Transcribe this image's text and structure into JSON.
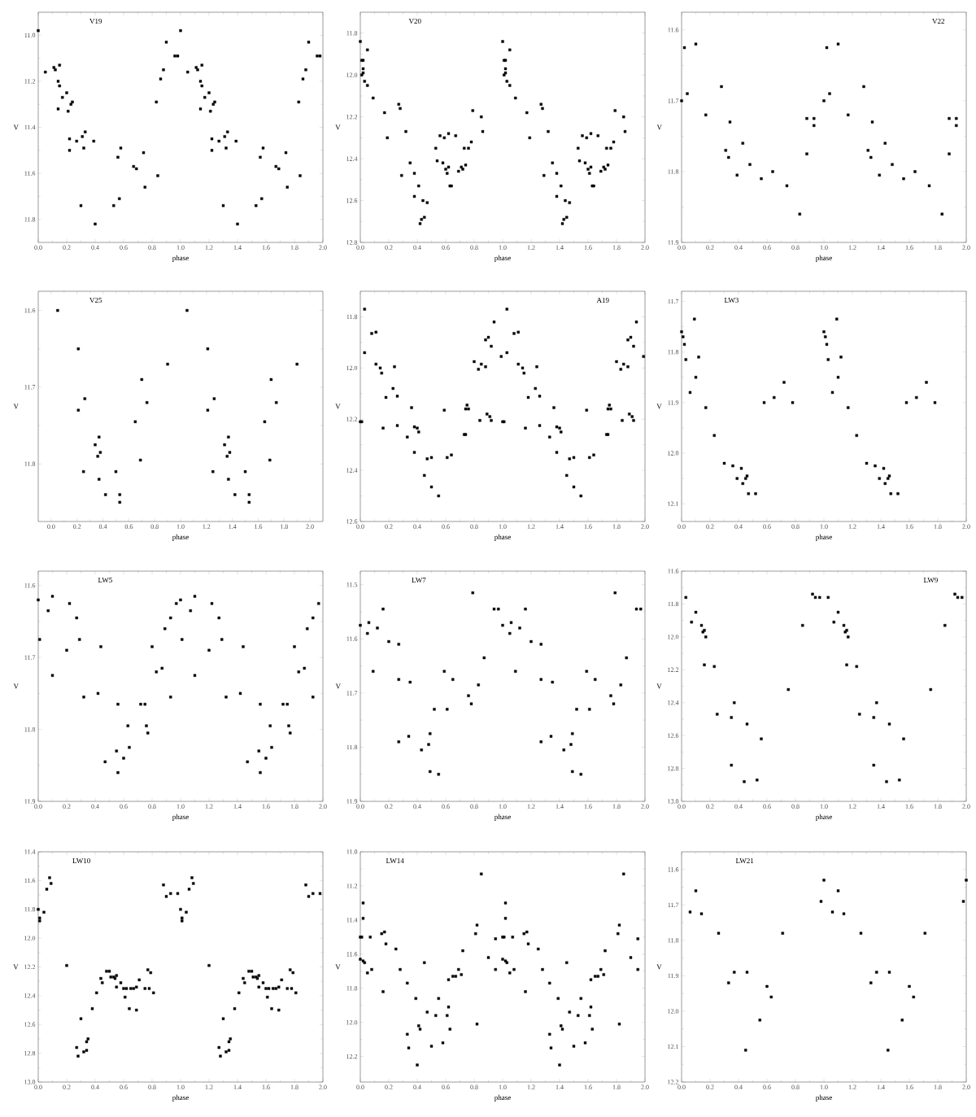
{
  "chart_data": [
    {
      "type": "scatter",
      "title": "V19",
      "xlabel": "phase",
      "ylabel": "V",
      "marker": "square",
      "color": "#000000",
      "xlim": [
        0,
        2
      ],
      "ylim": [
        11.9,
        10.9
      ],
      "xticks": [
        {
          "value": 0,
          "label": "0.0"
        },
        0.2,
        0.4,
        0.6,
        0.8,
        {
          "value": 1,
          "label": "1.0"
        },
        1.2,
        1.4,
        1.6,
        1.8,
        {
          "value": 2,
          "label": "2.0"
        }
      ],
      "yticks": [
        {
          "value": 11,
          "label": "11.0"
        },
        11.2,
        11.4,
        11.6,
        11.8
      ],
      "x": [
        0.0,
        0.05,
        0.11,
        0.12,
        0.15,
        0.14,
        0.15,
        0.17,
        0.14,
        0.2,
        0.21,
        0.23,
        0.24,
        0.22,
        0.22,
        0.27,
        0.31,
        0.33,
        0.32,
        0.39,
        0.3,
        0.4,
        0.53,
        0.56,
        0.58,
        0.57,
        0.67,
        0.69,
        0.74,
        0.75,
        0.83,
        0.84,
        0.86,
        0.88,
        0.9,
        0.96,
        0.98,
        1.0,
        1.05,
        1.11,
        1.12,
        1.15,
        1.14,
        1.15,
        1.17,
        1.14,
        1.2,
        1.21,
        1.23,
        1.24,
        1.22,
        1.22,
        1.27,
        1.31,
        1.33,
        1.32,
        1.39,
        1.3,
        1.4,
        1.53,
        1.56,
        1.58,
        1.57,
        1.67,
        1.69,
        1.74,
        1.75,
        1.83,
        1.84,
        1.86,
        1.88,
        1.9,
        1.96,
        1.98
      ],
      "values": [
        10.98,
        11.16,
        11.14,
        11.15,
        11.13,
        11.2,
        11.22,
        11.27,
        11.32,
        11.25,
        11.33,
        11.3,
        11.29,
        11.45,
        11.5,
        11.46,
        11.44,
        11.42,
        11.49,
        11.46,
        11.74,
        11.82,
        11.74,
        11.53,
        11.49,
        11.71,
        11.57,
        11.58,
        11.51,
        11.66,
        11.29,
        11.61,
        11.19,
        11.15,
        11.03,
        11.09,
        11.09,
        10.98,
        11.16,
        11.14,
        11.15,
        11.13,
        11.2,
        11.22,
        11.27,
        11.32,
        11.25,
        11.33,
        11.3,
        11.29,
        11.45,
        11.5,
        11.46,
        11.44,
        11.42,
        11.49,
        11.46,
        11.74,
        11.82,
        11.74,
        11.53,
        11.49,
        11.71,
        11.57,
        11.58,
        11.51,
        11.66,
        11.29,
        11.61,
        11.19,
        11.15,
        11.03,
        11.09,
        11.09
      ]
    },
    {
      "type": "scatter",
      "title": "V20",
      "xlabel": "phase",
      "ylabel": "V",
      "marker": "square",
      "color": "#000000",
      "xlim": [
        0,
        2
      ],
      "ylim": [
        12.8,
        11.7
      ],
      "xticks": [
        {
          "value": 0,
          "label": "0.0"
        },
        0.2,
        0.4,
        0.6,
        0.8,
        {
          "value": 1,
          "label": "1.0"
        },
        1.2,
        1.4,
        1.6,
        1.8,
        {
          "value": 2,
          "label": "2.0"
        }
      ],
      "yticks": [
        11.8,
        {
          "value": 12,
          "label": "12.0"
        },
        12.2,
        12.4,
        12.6,
        12.8
      ],
      "x": [
        0.0,
        0.01,
        0.02,
        0.02,
        0.02,
        0.01,
        0.03,
        0.05,
        0.05,
        0.09,
        0.17,
        0.19,
        0.27,
        0.28,
        0.29,
        0.32,
        0.35,
        0.38,
        0.38,
        0.41,
        0.42,
        0.43,
        0.44,
        0.45,
        0.47,
        0.53,
        0.54,
        0.56,
        0.58,
        0.59,
        0.6,
        0.61,
        0.62,
        0.62,
        0.63,
        0.64,
        0.67,
        0.69,
        0.71,
        0.72,
        0.73,
        0.74,
        0.76,
        0.78,
        0.79,
        0.85,
        0.86,
        1.0,
        1.01,
        1.02,
        1.02,
        1.02,
        1.01,
        1.03,
        1.05,
        1.05,
        1.09,
        1.17,
        1.19,
        1.27,
        1.28,
        1.29,
        1.32,
        1.35,
        1.38,
        1.38,
        1.41,
        1.42,
        1.43,
        1.44,
        1.45,
        1.47,
        1.53,
        1.54,
        1.56,
        1.58,
        1.59,
        1.6,
        1.61,
        1.62,
        1.62,
        1.63,
        1.64,
        1.67,
        1.69,
        1.71,
        1.72,
        1.73,
        1.74,
        1.76,
        1.78,
        1.79,
        1.85,
        1.86
      ],
      "values": [
        11.84,
        11.93,
        11.93,
        11.97,
        11.99,
        12.0,
        12.03,
        11.88,
        12.05,
        12.11,
        12.18,
        12.3,
        12.14,
        12.16,
        12.48,
        12.27,
        12.42,
        12.47,
        12.58,
        12.53,
        12.71,
        12.69,
        12.6,
        12.68,
        12.61,
        12.35,
        12.41,
        12.29,
        12.42,
        12.3,
        12.45,
        12.47,
        12.44,
        12.28,
        12.53,
        12.53,
        12.29,
        12.46,
        12.44,
        12.45,
        12.35,
        12.43,
        12.35,
        12.32,
        12.17,
        12.2,
        12.27,
        11.84,
        11.93,
        11.93,
        11.97,
        11.99,
        12.0,
        12.03,
        11.88,
        12.05,
        12.11,
        12.18,
        12.3,
        12.14,
        12.16,
        12.48,
        12.27,
        12.42,
        12.47,
        12.58,
        12.53,
        12.71,
        12.69,
        12.6,
        12.68,
        12.61,
        12.35,
        12.41,
        12.29,
        12.42,
        12.3,
        12.45,
        12.47,
        12.44,
        12.28,
        12.53,
        12.53,
        12.29,
        12.46,
        12.44,
        12.45,
        12.35,
        12.43,
        12.35,
        12.32,
        12.17,
        12.2,
        12.27
      ]
    },
    {
      "type": "scatter",
      "title": "V22",
      "xlabel": "phase",
      "ylabel": "V",
      "marker": "square",
      "color": "#000000",
      "xlim": [
        0,
        2
      ],
      "ylim": [
        11.9,
        11.575
      ],
      "xticks": [
        {
          "value": 0,
          "label": "0.0"
        },
        0.2,
        0.4,
        0.6,
        0.8,
        {
          "value": 1,
          "label": "1.0"
        },
        1.2,
        1.4,
        1.6,
        1.8,
        {
          "value": 2,
          "label": "2.0"
        }
      ],
      "yticks": [
        11.6,
        11.7,
        11.8,
        11.9
      ],
      "x": [
        0.0,
        0.02,
        0.04,
        0.1,
        0.17,
        0.28,
        0.31,
        0.33,
        0.34,
        0.39,
        0.43,
        0.48,
        0.56,
        0.64,
        0.74,
        0.83,
        0.88,
        0.88,
        0.93,
        0.93,
        1.0,
        1.02,
        1.04,
        1.1,
        1.17,
        1.28,
        1.31,
        1.33,
        1.34,
        1.39,
        1.43,
        1.48,
        1.56,
        1.64,
        1.74,
        1.83,
        1.88,
        1.88,
        1.93,
        1.93
      ],
      "values": [
        11.7,
        11.625,
        11.69,
        11.62,
        11.72,
        11.68,
        11.77,
        11.78,
        11.73,
        11.805,
        11.76,
        11.79,
        11.81,
        11.8,
        11.82,
        11.86,
        11.725,
        11.775,
        11.725,
        11.735,
        11.7,
        11.625,
        11.69,
        11.62,
        11.72,
        11.68,
        11.77,
        11.78,
        11.73,
        11.805,
        11.76,
        11.79,
        11.81,
        11.8,
        11.82,
        11.86,
        11.725,
        11.775,
        11.725,
        11.735
      ]
    },
    {
      "type": "scatter",
      "title": "V25",
      "xlabel": "phase",
      "ylabel": "V",
      "marker": "square",
      "color": "#000000",
      "xlim": [
        -0.1,
        2.1
      ],
      "ylim": [
        11.875,
        11.575
      ],
      "xticks": [
        {
          "value": 0,
          "label": "0.0"
        },
        0.2,
        0.4,
        0.6,
        0.8,
        {
          "value": 1,
          "label": "1.0"
        },
        1.2,
        1.4,
        1.6,
        1.8,
        {
          "value": 2,
          "label": "2.0"
        }
      ],
      "yticks": [
        11.6,
        11.7,
        11.8
      ],
      "x": [
        0.05,
        0.21,
        0.21,
        0.26,
        0.25,
        0.34,
        0.37,
        0.36,
        0.38,
        0.37,
        0.42,
        0.5,
        0.53,
        0.53,
        0.65,
        0.7,
        0.69,
        0.74,
        0.9,
        1.05,
        1.21,
        1.21,
        1.26,
        1.25,
        1.34,
        1.37,
        1.36,
        1.38,
        1.37,
        1.42,
        1.5,
        1.53,
        1.53,
        1.65,
        1.7,
        1.69,
        1.74,
        1.9
      ],
      "values": [
        11.6,
        11.65,
        11.73,
        11.715,
        11.81,
        11.775,
        11.765,
        11.79,
        11.785,
        11.82,
        11.84,
        11.81,
        11.84,
        11.85,
        11.745,
        11.69,
        11.795,
        11.72,
        11.67,
        11.6,
        11.65,
        11.73,
        11.715,
        11.81,
        11.775,
        11.765,
        11.79,
        11.785,
        11.82,
        11.84,
        11.81,
        11.84,
        11.85,
        11.745,
        11.69,
        11.795,
        11.72,
        11.67
      ]
    },
    {
      "type": "scatter",
      "title": "A19",
      "xlabel": "phase",
      "ylabel": "V",
      "marker": "square",
      "color": "#000000",
      "xlim": [
        0,
        2
      ],
      "ylim": [
        12.6,
        11.7
      ],
      "xticks": [
        {
          "value": 0,
          "label": "0.0"
        },
        0.2,
        0.4,
        0.6,
        0.8,
        {
          "value": 1,
          "label": "1.0"
        },
        1.2,
        1.4,
        1.6,
        1.8,
        {
          "value": 2,
          "label": "2.0"
        }
      ],
      "yticks": [
        11.8,
        {
          "value": 12,
          "label": "12.0"
        },
        12.2,
        12.4,
        12.6
      ],
      "x": [
        0.0,
        0.01,
        0.03,
        0.03,
        0.08,
        0.11,
        0.11,
        0.14,
        0.15,
        0.16,
        0.18,
        0.23,
        0.24,
        0.26,
        0.26,
        0.33,
        0.36,
        0.38,
        0.38,
        0.4,
        0.41,
        0.45,
        0.47,
        0.5,
        0.5,
        0.55,
        0.59,
        0.61,
        0.64,
        0.73,
        0.74,
        0.75,
        0.76,
        0.74,
        0.8,
        0.83,
        0.84,
        0.85,
        0.88,
        0.88,
        0.89,
        0.9,
        0.91,
        0.92,
        0.92,
        0.94,
        0.99,
        1.0,
        1.01,
        1.03,
        1.03,
        1.08,
        1.11,
        1.11,
        1.14,
        1.15,
        1.16,
        1.18,
        1.23,
        1.24,
        1.26,
        1.26,
        1.33,
        1.36,
        1.38,
        1.38,
        1.4,
        1.41,
        1.45,
        1.47,
        1.5,
        1.5,
        1.55,
        1.59,
        1.61,
        1.64,
        1.73,
        1.74,
        1.75,
        1.76,
        1.74,
        1.8,
        1.83,
        1.84,
        1.85,
        1.88,
        1.88,
        1.89,
        1.9,
        1.91,
        1.92,
        1.92,
        1.94,
        1.99
      ],
      "values": [
        12.21,
        12.21,
        11.77,
        11.94,
        11.865,
        11.86,
        11.985,
        12.0,
        12.02,
        12.235,
        12.115,
        12.08,
        11.995,
        12.11,
        12.225,
        12.27,
        12.155,
        12.23,
        12.33,
        12.235,
        12.25,
        12.42,
        12.355,
        12.35,
        12.465,
        12.5,
        12.165,
        12.35,
        12.34,
        12.26,
        12.26,
        12.145,
        12.16,
        12.16,
        11.975,
        12.005,
        12.205,
        11.985,
        11.995,
        11.89,
        12.18,
        11.88,
        12.19,
        11.915,
        12.205,
        11.82,
        11.955,
        12.21,
        12.21,
        11.77,
        11.94,
        11.865,
        11.86,
        11.985,
        12.0,
        12.02,
        12.235,
        12.115,
        12.08,
        11.995,
        12.11,
        12.225,
        12.27,
        12.155,
        12.23,
        12.33,
        12.235,
        12.25,
        12.42,
        12.355,
        12.35,
        12.465,
        12.5,
        12.165,
        12.35,
        12.34,
        12.26,
        12.26,
        12.145,
        12.16,
        12.16,
        11.975,
        12.005,
        12.205,
        11.985,
        11.995,
        11.89,
        12.18,
        11.88,
        12.19,
        11.915,
        12.205,
        11.82,
        11.955
      ]
    },
    {
      "type": "scatter",
      "title": "LW3",
      "xlabel": "phase",
      "ylabel": "V",
      "marker": "square",
      "color": "#000000",
      "xlim": [
        0,
        2
      ],
      "ylim": [
        12.135,
        11.68
      ],
      "xticks": [
        {
          "value": 0,
          "label": "0.0"
        },
        0.2,
        0.4,
        0.6,
        0.8,
        {
          "value": 1,
          "label": "1.0"
        },
        1.2,
        1.4,
        1.6,
        1.8,
        {
          "value": 2,
          "label": "2.0"
        }
      ],
      "yticks": [
        11.7,
        11.8,
        11.9,
        {
          "value": 12,
          "label": "12.0"
        },
        12.1
      ],
      "x": [
        0.0,
        0.01,
        0.02,
        0.03,
        0.06,
        0.09,
        0.1,
        0.12,
        0.17,
        0.23,
        0.3,
        0.36,
        0.39,
        0.42,
        0.43,
        0.45,
        0.46,
        0.47,
        0.52,
        0.58,
        0.65,
        0.72,
        0.78,
        1.0,
        1.01,
        1.02,
        1.03,
        1.06,
        1.09,
        1.1,
        1.12,
        1.17,
        1.23,
        1.3,
        1.36,
        1.39,
        1.42,
        1.43,
        1.45,
        1.46,
        1.47,
        1.52,
        1.58,
        1.65,
        1.72,
        1.78
      ],
      "values": [
        11.76,
        11.77,
        11.785,
        11.815,
        11.88,
        11.735,
        11.85,
        11.81,
        11.91,
        11.965,
        12.02,
        12.025,
        12.05,
        12.03,
        12.06,
        12.05,
        12.045,
        12.08,
        12.08,
        11.9,
        11.89,
        11.86,
        11.9,
        11.76,
        11.77,
        11.785,
        11.815,
        11.88,
        11.735,
        11.85,
        11.81,
        11.91,
        11.965,
        12.02,
        12.025,
        12.05,
        12.03,
        12.06,
        12.05,
        12.045,
        12.08,
        12.08,
        11.9,
        11.89,
        11.86,
        11.9
      ]
    },
    {
      "type": "scatter",
      "title": "LW5",
      "xlabel": "phase",
      "ylabel": "V",
      "marker": "square",
      "color": "#000000",
      "xlim": [
        0,
        2
      ],
      "ylim": [
        11.9,
        11.58
      ],
      "xticks": [
        {
          "value": 0,
          "label": "0.0"
        },
        0.2,
        0.4,
        0.6,
        0.8,
        {
          "value": 1,
          "label": "1.0"
        },
        1.2,
        1.4,
        1.6,
        1.8,
        {
          "value": 2,
          "label": "2.0"
        }
      ],
      "yticks": [
        11.6,
        11.7,
        11.8,
        11.9
      ],
      "x": [
        0.0,
        0.01,
        0.07,
        0.1,
        0.1,
        0.2,
        0.22,
        0.27,
        0.29,
        0.32,
        0.42,
        0.44,
        0.47,
        0.55,
        0.56,
        0.56,
        0.6,
        0.63,
        0.64,
        0.72,
        0.75,
        0.76,
        0.77,
        0.8,
        0.83,
        0.87,
        0.89,
        0.93,
        0.93,
        0.97,
        1.0,
        1.01,
        1.07,
        1.1,
        1.1,
        1.2,
        1.22,
        1.27,
        1.29,
        1.32,
        1.42,
        1.44,
        1.47,
        1.55,
        1.56,
        1.56,
        1.6,
        1.63,
        1.64,
        1.72,
        1.75,
        1.76,
        1.77,
        1.8,
        1.83,
        1.87,
        1.89,
        1.93,
        1.93,
        1.97
      ],
      "values": [
        11.62,
        11.675,
        11.635,
        11.725,
        11.615,
        11.69,
        11.625,
        11.645,
        11.675,
        11.755,
        11.75,
        11.685,
        11.845,
        11.83,
        11.765,
        11.86,
        11.84,
        11.795,
        11.825,
        11.765,
        11.765,
        11.795,
        11.805,
        11.685,
        11.72,
        11.715,
        11.66,
        11.645,
        11.755,
        11.625,
        11.62,
        11.675,
        11.635,
        11.725,
        11.615,
        11.69,
        11.625,
        11.645,
        11.675,
        11.755,
        11.75,
        11.685,
        11.845,
        11.83,
        11.765,
        11.86,
        11.84,
        11.795,
        11.825,
        11.765,
        11.765,
        11.795,
        11.805,
        11.685,
        11.72,
        11.715,
        11.66,
        11.645,
        11.755,
        11.625
      ]
    },
    {
      "type": "scatter",
      "title": "LW7",
      "xlabel": "phase",
      "ylabel": "V",
      "marker": "square",
      "color": "#000000",
      "xlim": [
        0,
        2
      ],
      "ylim": [
        11.9,
        11.475
      ],
      "xticks": [
        {
          "value": 0,
          "label": "0.0"
        },
        0.2,
        0.4,
        0.6,
        0.8,
        {
          "value": 1,
          "label": "1.0"
        },
        1.2,
        1.4,
        1.6,
        1.8,
        {
          "value": 2,
          "label": "2.0"
        }
      ],
      "yticks": [
        11.5,
        11.6,
        11.7,
        11.8,
        11.9
      ],
      "x": [
        0.0,
        0.05,
        0.06,
        0.09,
        0.12,
        0.16,
        0.2,
        0.27,
        0.27,
        0.27,
        0.34,
        0.35,
        0.43,
        0.48,
        0.49,
        0.49,
        0.52,
        0.55,
        0.59,
        0.61,
        0.65,
        0.76,
        0.78,
        0.79,
        0.83,
        0.87,
        0.94,
        0.97,
        1.0,
        1.05,
        1.06,
        1.09,
        1.12,
        1.16,
        1.2,
        1.27,
        1.27,
        1.27,
        1.34,
        1.35,
        1.43,
        1.48,
        1.49,
        1.49,
        1.52,
        1.55,
        1.59,
        1.61,
        1.65,
        1.76,
        1.78,
        1.79,
        1.83,
        1.87,
        1.94,
        1.97
      ],
      "values": [
        11.575,
        11.59,
        11.57,
        11.66,
        11.58,
        11.545,
        11.605,
        11.61,
        11.675,
        11.79,
        11.78,
        11.68,
        11.805,
        11.795,
        11.775,
        11.845,
        11.73,
        11.85,
        11.66,
        11.73,
        11.675,
        11.705,
        11.72,
        11.515,
        11.685,
        11.635,
        11.545,
        11.545,
        11.575,
        11.59,
        11.57,
        11.66,
        11.58,
        11.545,
        11.605,
        11.61,
        11.675,
        11.79,
        11.78,
        11.68,
        11.805,
        11.795,
        11.775,
        11.845,
        11.73,
        11.85,
        11.66,
        11.73,
        11.675,
        11.705,
        11.72,
        11.515,
        11.685,
        11.635,
        11.545,
        11.545
      ]
    },
    {
      "type": "scatter",
      "title": "LW9",
      "xlabel": "phase",
      "ylabel": "V",
      "marker": "square",
      "color": "#000000",
      "xlim": [
        0,
        2
      ],
      "ylim": [
        13.0,
        11.6
      ],
      "xticks": [
        {
          "value": 0,
          "label": "0.0"
        },
        0.2,
        0.4,
        0.6,
        0.8,
        {
          "value": 1,
          "label": "1.0"
        },
        1.2,
        1.4,
        1.6,
        1.8,
        {
          "value": 2,
          "label": "2.0"
        }
      ],
      "yticks": [
        11.6,
        11.8,
        {
          "value": 12,
          "label": "12.0"
        },
        12.2,
        12.4,
        12.6,
        12.8,
        {
          "value": 13,
          "label": "13.0"
        }
      ],
      "x": [
        0.03,
        0.07,
        0.1,
        0.14,
        0.15,
        0.16,
        0.17,
        0.16,
        0.23,
        0.25,
        0.35,
        0.35,
        0.37,
        0.44,
        0.46,
        0.53,
        0.56,
        0.75,
        0.85,
        0.92,
        0.94,
        0.97,
        1.03,
        1.07,
        1.1,
        1.14,
        1.15,
        1.16,
        1.17,
        1.16,
        1.23,
        1.25,
        1.35,
        1.35,
        1.37,
        1.44,
        1.46,
        1.53,
        1.56,
        1.75,
        1.85,
        1.92,
        1.94,
        1.97
      ],
      "values": [
        11.76,
        11.91,
        11.85,
        11.93,
        11.97,
        11.96,
        12.0,
        12.17,
        12.18,
        12.47,
        12.78,
        12.49,
        12.4,
        12.88,
        12.53,
        12.87,
        12.62,
        12.32,
        11.93,
        11.74,
        11.76,
        11.76,
        11.76,
        11.91,
        11.85,
        11.93,
        11.97,
        11.96,
        12.0,
        12.17,
        12.18,
        12.47,
        12.78,
        12.49,
        12.4,
        12.88,
        12.53,
        12.87,
        12.62,
        12.32,
        11.93,
        11.74,
        11.76,
        11.76
      ]
    },
    {
      "type": "scatter",
      "title": "LW10",
      "xlabel": "phase",
      "ylabel": "V",
      "marker": "square",
      "color": "#000000",
      "xlim": [
        0,
        2
      ],
      "ylim": [
        13.0,
        11.4
      ],
      "xticks": [
        {
          "value": 0,
          "label": "0.0"
        },
        0.2,
        0.4,
        0.6,
        0.8,
        {
          "value": 1,
          "label": "1.0"
        },
        1.2,
        1.4,
        1.6,
        1.8,
        {
          "value": 2,
          "label": "2.0"
        }
      ],
      "yticks": [
        11.4,
        11.6,
        11.8,
        {
          "value": 12,
          "label": "12.0"
        },
        12.2,
        12.4,
        12.6,
        12.8,
        {
          "value": 13,
          "label": "13.0"
        }
      ],
      "x": [
        0.0,
        0.01,
        0.01,
        0.04,
        0.06,
        0.08,
        0.09,
        0.2,
        0.27,
        0.28,
        0.3,
        0.32,
        0.34,
        0.34,
        0.35,
        0.38,
        0.41,
        0.44,
        0.45,
        0.48,
        0.5,
        0.51,
        0.53,
        0.54,
        0.55,
        0.55,
        0.58,
        0.6,
        0.61,
        0.62,
        0.64,
        0.65,
        0.67,
        0.69,
        0.69,
        0.71,
        0.75,
        0.77,
        0.78,
        0.79,
        0.81,
        0.88,
        0.9,
        0.93,
        0.98,
        1.0,
        1.01,
        1.01,
        1.04,
        1.06,
        1.08,
        1.09,
        1.2,
        1.27,
        1.28,
        1.3,
        1.32,
        1.34,
        1.34,
        1.35,
        1.38,
        1.41,
        1.44,
        1.45,
        1.48,
        1.5,
        1.51,
        1.53,
        1.54,
        1.55,
        1.55,
        1.58,
        1.6,
        1.61,
        1.62,
        1.64,
        1.65,
        1.67,
        1.69,
        1.69,
        1.71,
        1.75,
        1.77,
        1.78,
        1.79,
        1.81,
        1.88,
        1.9,
        1.93,
        1.98
      ],
      "values": [
        11.8,
        11.86,
        11.88,
        11.82,
        11.66,
        11.58,
        11.62,
        12.19,
        12.76,
        12.82,
        12.56,
        12.79,
        12.78,
        12.72,
        12.7,
        12.49,
        12.38,
        12.28,
        12.31,
        12.23,
        12.23,
        12.27,
        12.27,
        12.28,
        12.26,
        12.34,
        12.31,
        12.35,
        12.41,
        12.35,
        12.49,
        12.35,
        12.35,
        12.34,
        12.5,
        12.29,
        12.35,
        12.22,
        12.35,
        12.24,
        12.38,
        11.63,
        11.71,
        11.69,
        11.69,
        11.8,
        11.86,
        11.88,
        11.82,
        11.66,
        11.58,
        11.62,
        12.19,
        12.76,
        12.82,
        12.56,
        12.79,
        12.78,
        12.72,
        12.7,
        12.49,
        12.38,
        12.28,
        12.31,
        12.23,
        12.23,
        12.27,
        12.27,
        12.28,
        12.26,
        12.34,
        12.31,
        12.35,
        12.41,
        12.35,
        12.49,
        12.35,
        12.35,
        12.34,
        12.5,
        12.29,
        12.35,
        12.22,
        12.35,
        12.24,
        12.38,
        11.63,
        11.71,
        11.69,
        11.69
      ]
    },
    {
      "type": "scatter",
      "title": "LW14",
      "xlabel": "phase",
      "ylabel": "V",
      "marker": "square",
      "color": "#000000",
      "xlim": [
        0,
        2
      ],
      "ylim": [
        12.35,
        11.0
      ],
      "xticks": [
        {
          "value": 0,
          "label": "0.0"
        },
        0.2,
        0.4,
        0.6,
        0.8,
        {
          "value": 1,
          "label": "1.0"
        },
        1.2,
        1.4,
        1.6,
        1.8,
        {
          "value": 2,
          "label": "2.0"
        }
      ],
      "yticks": [
        {
          "value": 11,
          "label": "11.0"
        },
        11.2,
        11.4,
        11.6,
        11.8,
        {
          "value": 12,
          "label": "12.0"
        },
        12.2
      ],
      "x": [
        0.0,
        0.0,
        0.01,
        0.02,
        0.02,
        0.02,
        0.03,
        0.05,
        0.07,
        0.08,
        0.15,
        0.16,
        0.17,
        0.18,
        0.25,
        0.28,
        0.33,
        0.33,
        0.34,
        0.39,
        0.4,
        0.41,
        0.42,
        0.45,
        0.47,
        0.5,
        0.53,
        0.55,
        0.58,
        0.61,
        0.62,
        0.62,
        0.63,
        0.65,
        0.67,
        0.69,
        0.71,
        0.72,
        0.81,
        0.82,
        0.82,
        0.85,
        0.9,
        0.95,
        0.95,
        1.0,
        1.0,
        1.01,
        1.02,
        1.02,
        1.02,
        1.03,
        1.05,
        1.07,
        1.08,
        1.15,
        1.16,
        1.17,
        1.18,
        1.25,
        1.28,
        1.33,
        1.33,
        1.34,
        1.39,
        1.4,
        1.41,
        1.42,
        1.45,
        1.47,
        1.5,
        1.53,
        1.55,
        1.58,
        1.61,
        1.62,
        1.62,
        1.63,
        1.65,
        1.67,
        1.69,
        1.71,
        1.72,
        1.81,
        1.82,
        1.82,
        1.85,
        1.9,
        1.95,
        1.95
      ],
      "values": [
        11.5,
        11.63,
        11.5,
        11.3,
        11.39,
        11.64,
        11.65,
        11.71,
        11.5,
        11.69,
        11.48,
        11.82,
        11.47,
        11.54,
        11.57,
        11.69,
        11.77,
        12.07,
        12.15,
        11.86,
        12.25,
        12.02,
        12.04,
        11.65,
        11.94,
        12.14,
        11.96,
        11.86,
        12.12,
        11.96,
        11.91,
        11.75,
        12.04,
        11.73,
        11.73,
        11.69,
        11.72,
        11.58,
        11.48,
        11.43,
        12.01,
        11.13,
        11.62,
        11.51,
        11.69,
        11.5,
        11.63,
        11.5,
        11.3,
        11.39,
        11.64,
        11.65,
        11.71,
        11.5,
        11.69,
        11.48,
        11.82,
        11.47,
        11.54,
        11.57,
        11.69,
        11.77,
        12.07,
        12.15,
        11.86,
        12.25,
        12.02,
        12.04,
        11.65,
        11.94,
        12.14,
        11.96,
        11.86,
        12.12,
        11.96,
        11.91,
        11.75,
        12.04,
        11.73,
        11.73,
        11.69,
        11.72,
        11.58,
        11.48,
        11.43,
        12.01,
        11.13,
        11.62,
        11.51,
        11.69
      ]
    },
    {
      "type": "scatter",
      "title": "LW21",
      "xlabel": "phase",
      "ylabel": "V",
      "marker": "square",
      "color": "#000000",
      "xlim": [
        0,
        2
      ],
      "ylim": [
        12.2,
        11.55
      ],
      "xticks": [
        {
          "value": 0,
          "label": "0.0"
        },
        0.2,
        0.4,
        0.6,
        0.8,
        {
          "value": 1,
          "label": "1.0"
        },
        1.2,
        1.4,
        1.6,
        1.8,
        {
          "value": 2,
          "label": "2.0"
        }
      ],
      "yticks": [
        11.6,
        11.7,
        11.8,
        11.9,
        {
          "value": 12,
          "label": "12.0"
        },
        12.1,
        12.2
      ],
      "x": [
        0.06,
        0.1,
        0.14,
        0.26,
        0.33,
        0.37,
        0.46,
        0.45,
        0.55,
        0.6,
        0.63,
        0.71,
        0.98,
        1.0,
        1.06,
        1.1,
        1.14,
        1.26,
        1.33,
        1.37,
        1.46,
        1.45,
        1.55,
        1.6,
        1.63,
        1.71,
        1.98,
        2.0
      ],
      "values": [
        11.72,
        11.66,
        11.725,
        11.78,
        11.92,
        11.89,
        11.89,
        12.11,
        12.025,
        11.93,
        11.96,
        11.78,
        11.69,
        11.63,
        11.72,
        11.66,
        11.725,
        11.78,
        11.92,
        11.89,
        11.89,
        12.11,
        12.025,
        11.93,
        11.96,
        11.78,
        11.69,
        11.63
      ]
    }
  ]
}
